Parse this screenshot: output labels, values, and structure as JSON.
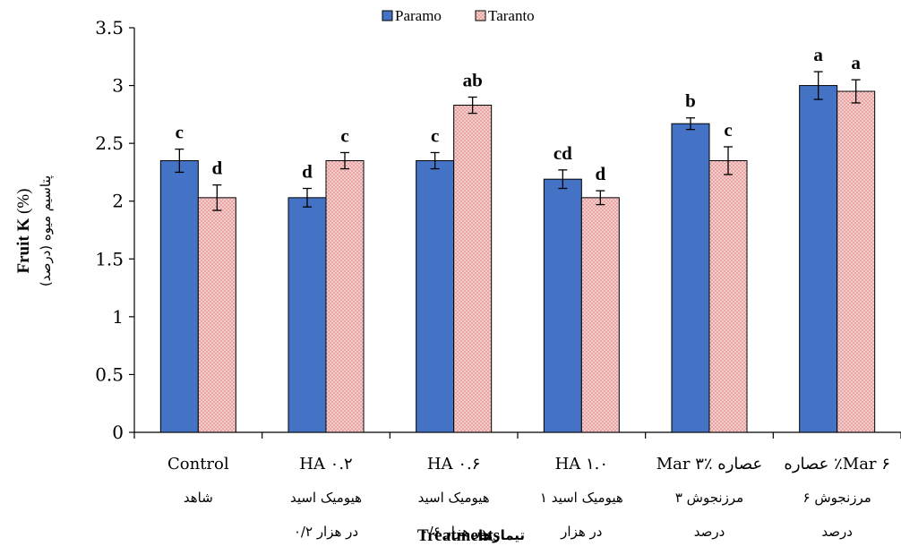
{
  "chart_data": {
    "type": "bar",
    "xlabel": "Treatments",
    "xlabel_fa": "تیمارها",
    "ylabel": "Fruit  K",
    "ylabel_unit": "(%)",
    "ylabel_fa": "پتاسیم میوه (درصد)",
    "ylim": [
      0,
      3.5
    ],
    "yticks": [
      "0",
      "0.5",
      "1",
      "1.5",
      "2",
      "2.5",
      "3",
      "3.5"
    ],
    "legend_position": "top-center",
    "categories": [
      {
        "en": "Control",
        "fa1": "شاهد",
        "fa2": ""
      },
      {
        "en": "HA ۰.۲",
        "fa1": "هیومیک اسید",
        "fa2": "۰/۲ در هزار"
      },
      {
        "en": "HA ۰.۶",
        "fa1": "هیومیک اسید",
        "fa2": "۰/۶ در هزار"
      },
      {
        "en": "HA ۱.۰",
        "fa1": "هیومیک اسید ۱",
        "fa2": "در هزار"
      },
      {
        "en": "Mar ۳٪ عصاره",
        "fa1": "مرزنجوش ۳",
        "fa2": "درصد"
      },
      {
        "en": "عصاره ٪Mar ۶",
        "fa1": "مرزنجوش ۶",
        "fa2": "درصد"
      }
    ],
    "series": [
      {
        "name": "Paramo",
        "color": "#4472c4",
        "values": [
          2.35,
          2.03,
          2.35,
          2.19,
          2.67,
          3.0
        ],
        "errors": [
          0.1,
          0.08,
          0.07,
          0.08,
          0.05,
          0.12
        ],
        "letters": [
          "c",
          "d",
          "c",
          "cd",
          "b",
          "a"
        ]
      },
      {
        "name": "Taranto",
        "color": "#e7a9a7",
        "values": [
          2.03,
          2.35,
          2.83,
          2.03,
          2.35,
          2.95
        ],
        "errors": [
          0.11,
          0.07,
          0.07,
          0.06,
          0.12,
          0.1
        ],
        "letters": [
          "d",
          "c",
          "ab",
          "d",
          "c",
          "a"
        ]
      }
    ]
  }
}
